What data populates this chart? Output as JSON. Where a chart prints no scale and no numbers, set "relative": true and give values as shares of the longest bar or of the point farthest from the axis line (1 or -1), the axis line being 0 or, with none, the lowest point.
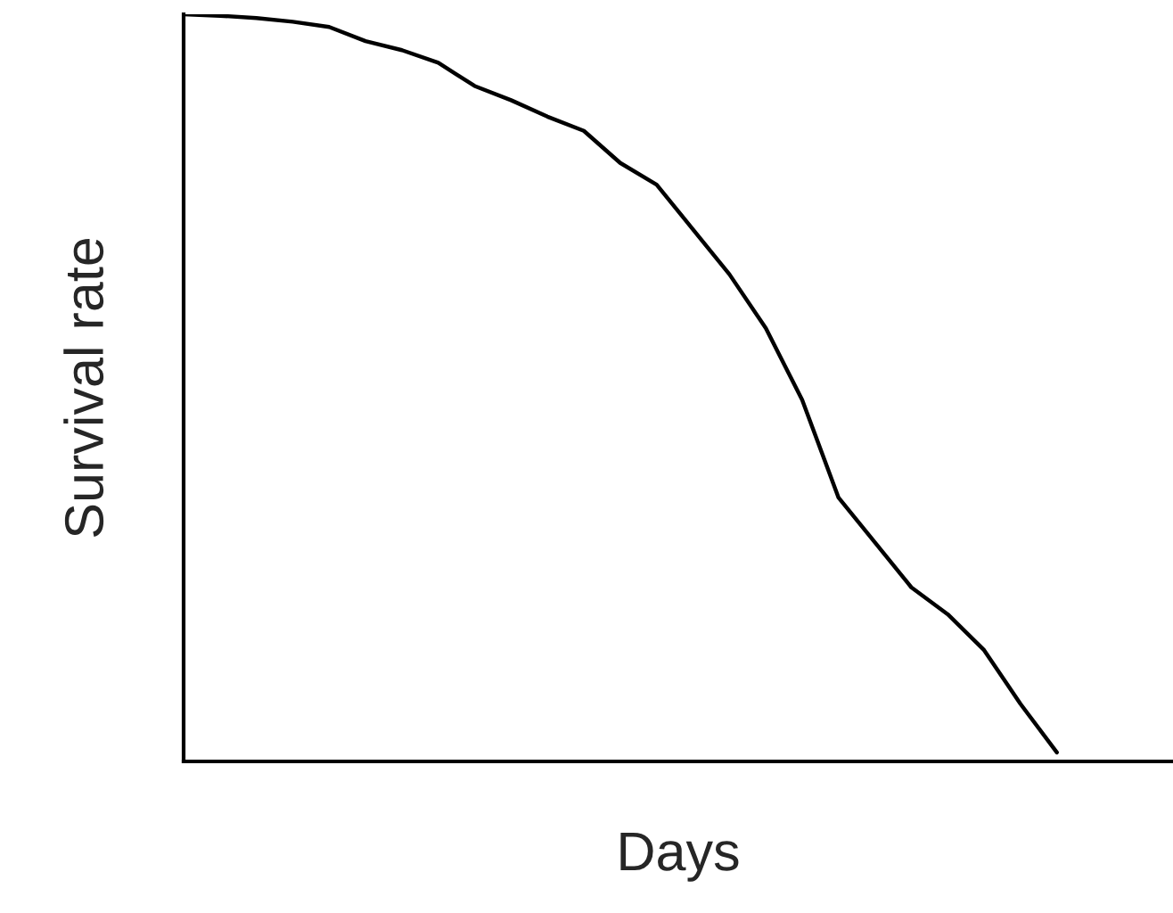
{
  "chart_data": {
    "type": "line",
    "relative": true,
    "xlabel": "Days",
    "ylabel": "Survival rate",
    "categories": [
      null,
      null,
      null,
      null,
      null,
      null,
      null,
      null,
      null,
      null,
      null,
      null,
      null,
      null,
      null,
      null,
      null,
      null,
      null,
      null,
      null,
      null,
      null,
      null,
      null
    ],
    "series": [
      {
        "color": "#000000",
        "values": [
          1.0,
          0.998,
          0.995,
          0.99,
          0.983,
          0.964,
          0.952,
          0.935,
          0.904,
          0.885,
          0.863,
          0.844,
          0.801,
          0.772,
          0.712,
          0.652,
          0.58,
          0.484,
          0.353,
          0.293,
          0.233,
          0.197,
          0.149,
          0.077,
          0.012
        ]
      }
    ],
    "legend": false
  }
}
